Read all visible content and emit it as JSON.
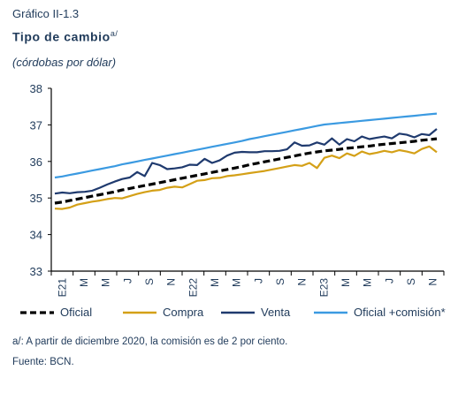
{
  "header": {
    "graf_number": "Gráfico II-1.3",
    "title": "Tipo de cambio",
    "title_sup": "a/",
    "subtitle": "(córdobas por dólar)"
  },
  "notes": {
    "note_a": "a/: A partir de diciembre 2020, la comisión es de 2 por ciento.",
    "source": "Fuente: BCN."
  },
  "chart_data": {
    "type": "line",
    "title": "Tipo de cambio",
    "ylabel": "",
    "xlabel": "",
    "ylim": [
      33,
      38
    ],
    "yticks": [
      33,
      34,
      35,
      36,
      37,
      38
    ],
    "grid": false,
    "legend_position": "bottom",
    "x_tick_labels": [
      "E21",
      "M",
      "M",
      "J",
      "S",
      "N",
      "E22",
      "M",
      "M",
      "J",
      "S",
      "N",
      "E23",
      "M",
      "M",
      "J",
      "S",
      "N"
    ],
    "series": [
      {
        "name": "Oficial",
        "color": "#000000",
        "style": "dashed",
        "values": [
          34.86,
          34.89,
          34.93,
          34.97,
          35.01,
          35.05,
          35.09,
          35.13,
          35.17,
          35.22,
          35.26,
          35.3,
          35.34,
          35.38,
          35.42,
          35.46,
          35.5,
          35.54,
          35.58,
          35.62,
          35.66,
          35.7,
          35.74,
          35.78,
          35.82,
          35.86,
          35.91,
          35.95,
          35.99,
          36.03,
          36.07,
          36.11,
          36.15,
          36.19,
          36.23,
          36.26,
          36.29,
          36.31,
          36.33,
          36.36,
          36.38,
          36.4,
          36.42,
          36.45,
          36.47,
          36.49,
          36.51,
          36.53,
          36.55,
          36.58,
          36.6,
          36.62
        ]
      },
      {
        "name": "Compra",
        "color": "#d4a017",
        "style": "solid",
        "values": [
          34.71,
          34.7,
          34.74,
          34.82,
          34.86,
          34.9,
          34.93,
          34.97,
          35.0,
          34.99,
          35.05,
          35.11,
          35.16,
          35.2,
          35.22,
          35.28,
          35.31,
          35.29,
          35.38,
          35.47,
          35.49,
          35.54,
          35.55,
          35.6,
          35.62,
          35.65,
          35.68,
          35.71,
          35.74,
          35.78,
          35.82,
          35.86,
          35.9,
          35.88,
          35.96,
          35.82,
          36.1,
          36.16,
          36.09,
          36.22,
          36.15,
          36.27,
          36.2,
          36.24,
          36.29,
          36.25,
          36.31,
          36.27,
          36.22,
          36.34,
          36.41,
          36.25
        ]
      },
      {
        "name": "Venta",
        "color": "#1f3a6e",
        "style": "solid",
        "values": [
          35.12,
          35.15,
          35.13,
          35.16,
          35.17,
          35.2,
          35.28,
          35.37,
          35.45,
          35.52,
          35.56,
          35.71,
          35.6,
          35.96,
          35.9,
          35.79,
          35.81,
          35.84,
          35.91,
          35.9,
          36.07,
          35.96,
          36.03,
          36.16,
          36.24,
          36.26,
          36.25,
          36.25,
          36.28,
          36.28,
          36.29,
          36.33,
          36.52,
          36.43,
          36.44,
          36.52,
          36.46,
          36.63,
          36.46,
          36.61,
          36.55,
          36.68,
          36.61,
          36.65,
          36.68,
          36.63,
          36.76,
          36.73,
          36.66,
          36.75,
          36.72,
          36.89
        ]
      },
      {
        "name": "Oficial +comisión*",
        "color": "#3b9ae1",
        "style": "solid",
        "values": [
          35.56,
          35.59,
          35.63,
          35.67,
          35.71,
          35.75,
          35.79,
          35.83,
          35.87,
          35.92,
          35.96,
          36.0,
          36.04,
          36.08,
          36.12,
          36.16,
          36.2,
          36.24,
          36.28,
          36.32,
          36.36,
          36.4,
          36.44,
          36.48,
          36.52,
          36.56,
          36.61,
          36.65,
          36.69,
          36.73,
          36.77,
          36.81,
          36.85,
          36.89,
          36.93,
          36.97,
          37.01,
          37.03,
          37.05,
          37.07,
          37.09,
          37.11,
          37.13,
          37.15,
          37.17,
          37.19,
          37.21,
          37.23,
          37.25,
          37.27,
          37.29,
          37.31
        ]
      }
    ]
  }
}
